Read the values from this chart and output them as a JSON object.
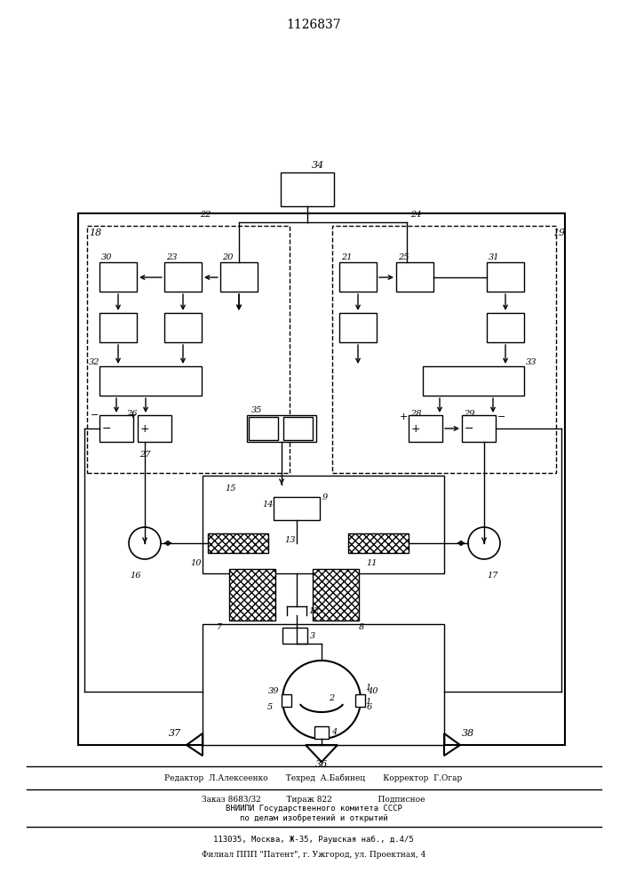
{
  "title": "1126837",
  "bg_color": "#ffffff",
  "line_color": "#000000",
  "footer_lines": [
    "Редактор  Л.Алексеенко       Техред  А.Бабинец       Корректор  Г.Огар",
    "Заказ 8683/32          Тираж 822                  Подписное",
    "ВНИИПИ Государственного комитета СССР",
    "по делам изобретений и открытий",
    "113035, Москва, Ж-35, Раушская наб., д.4/5",
    "Филиал ППП \"Патент\", г. Ужгород, ул. Проектная, 4"
  ]
}
